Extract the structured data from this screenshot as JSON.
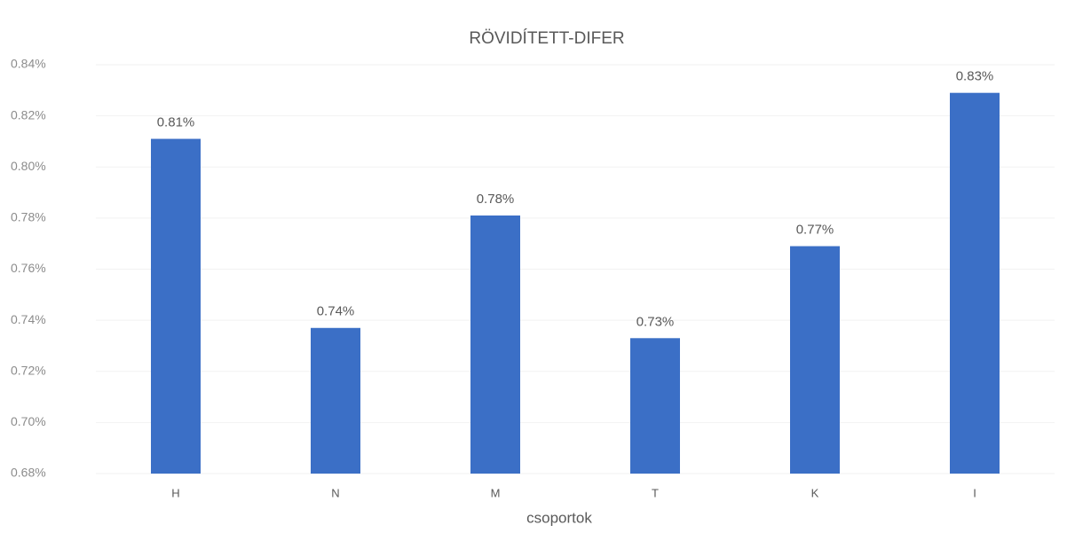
{
  "chart_data": {
    "type": "bar",
    "title": "RÖVIDÍTETT-DIFER",
    "x_label": "csoportok",
    "categories": [
      "H",
      "N",
      "M",
      "T",
      "K",
      "I"
    ],
    "values": [
      0.811,
      0.737,
      0.781,
      0.733,
      0.769,
      0.829
    ],
    "value_labels": [
      "0.81%",
      "0.74%",
      "0.78%",
      "0.73%",
      "0.77%",
      "0.83%"
    ],
    "color": "#3b6fc6",
    "ylim": [
      0.68,
      0.84
    ],
    "yticks": [
      {
        "value": 0.68,
        "label": "0.68%"
      },
      {
        "value": 0.7,
        "label": "0.70%"
      },
      {
        "value": 0.72,
        "label": "0.72%"
      },
      {
        "value": 0.74,
        "label": "0.74%"
      },
      {
        "value": 0.76,
        "label": "0.76%"
      },
      {
        "value": 0.78,
        "label": "0.78%"
      },
      {
        "value": 0.8,
        "label": "0.80%"
      },
      {
        "value": 0.82,
        "label": "0.82%"
      },
      {
        "value": 0.84,
        "label": "0.84%"
      }
    ],
    "grid": true
  }
}
